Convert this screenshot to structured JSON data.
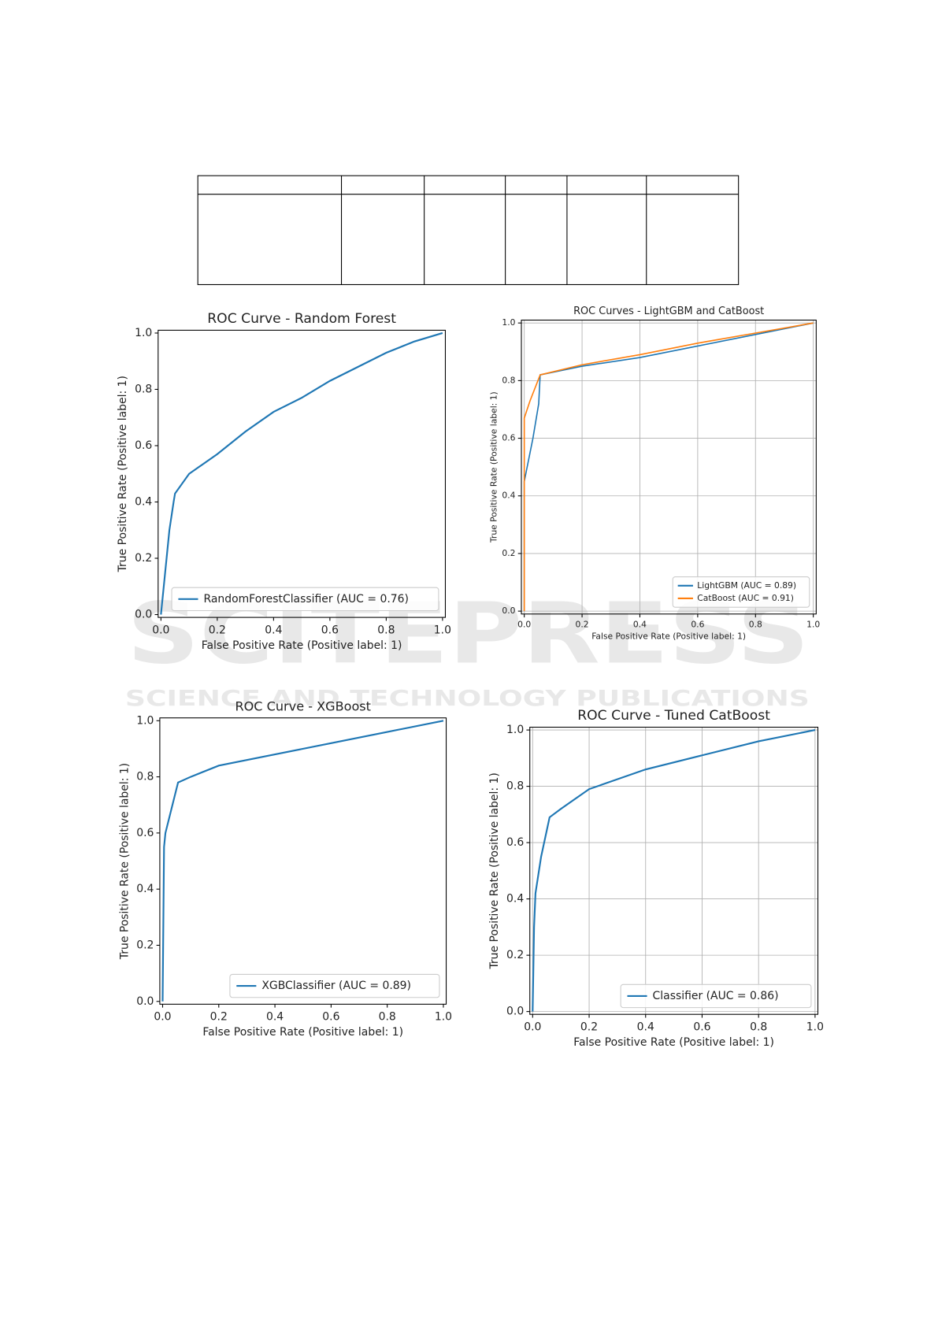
{
  "watermark": {
    "brand": "SCITEPRESS",
    "tagline": "SCIENCE AND TECHNOLOGY PUBLICATIONS"
  },
  "chart_data": [
    {
      "type": "line",
      "title": "ROC Curve - Random Forest",
      "xlabel": "False Positive Rate (Positive label: 1)",
      "ylabel": "True Positive Rate (Positive label: 1)",
      "xlim": [
        -0.01,
        1.01
      ],
      "ylim": [
        -0.01,
        1.01
      ],
      "xticks": [
        {
          "value": 0,
          "label": "0.0"
        },
        0.2,
        0.4,
        0.6,
        0.8,
        {
          "value": 1,
          "label": "1.0"
        }
      ],
      "yticks": [
        {
          "value": 0,
          "label": "0.0"
        },
        0.2,
        0.4,
        0.6,
        0.8,
        {
          "value": 1,
          "label": "1.0"
        }
      ],
      "grid": false,
      "legend": "lower right",
      "series": [
        {
          "name": "RandomForestClassifier (AUC = 0.76)",
          "color": "#1f77b4",
          "x": [
            0,
            0.01,
            0.02,
            0.03,
            0.045,
            0.05,
            0.1,
            0.2,
            0.3,
            0.4,
            0.5,
            0.6,
            0.7,
            0.8,
            0.9,
            1
          ],
          "values": [
            0,
            0.1,
            0.2,
            0.3,
            0.4,
            0.43,
            0.5,
            0.57,
            0.65,
            0.72,
            0.77,
            0.83,
            0.88,
            0.93,
            0.97,
            1
          ]
        }
      ]
    },
    {
      "type": "line",
      "title": "ROC Curves - LightGBM and CatBoost",
      "xlabel": "False Positive Rate (Positive label: 1)",
      "ylabel": "True Positive Rate (Positive label: 1)",
      "xlim": [
        -0.01,
        1.01
      ],
      "ylim": [
        -0.01,
        1.01
      ],
      "xticks": [
        {
          "value": 0,
          "label": "0.0"
        },
        0.2,
        0.4,
        0.6,
        0.8,
        {
          "value": 1,
          "label": "1.0"
        }
      ],
      "yticks": [
        {
          "value": 0,
          "label": "0.0"
        },
        0.2,
        0.4,
        0.6,
        0.8,
        {
          "value": 1,
          "label": "1.0"
        }
      ],
      "grid": true,
      "legend": "lower right",
      "series": [
        {
          "name": "LightGBM (AUC = 0.89)",
          "color": "#1f77b4",
          "x": [
            0,
            0,
            0.01,
            0.03,
            0.05,
            0.055,
            0.2,
            0.4,
            0.6,
            0.8,
            1
          ],
          "values": [
            0,
            0.45,
            0.5,
            0.6,
            0.72,
            0.82,
            0.85,
            0.88,
            0.92,
            0.96,
            1
          ]
        },
        {
          "name": "CatBoost (AUC = 0.91)",
          "color": "#ff7f0e",
          "x": [
            0,
            0,
            0.02,
            0.055,
            0.2,
            0.4,
            0.6,
            0.8,
            1
          ],
          "values": [
            0,
            0.67,
            0.73,
            0.82,
            0.855,
            0.89,
            0.93,
            0.965,
            1
          ]
        }
      ]
    },
    {
      "type": "line",
      "title": "ROC Curve - XGBoost",
      "xlabel": "False Positive Rate (Positive label: 1)",
      "ylabel": "True Positive Rate (Positive label: 1)",
      "xlim": [
        -0.01,
        1.01
      ],
      "ylim": [
        -0.01,
        1.01
      ],
      "xticks": [
        {
          "value": 0,
          "label": "0.0"
        },
        0.2,
        0.4,
        0.6,
        0.8,
        {
          "value": 1,
          "label": "1.0"
        }
      ],
      "yticks": [
        {
          "value": 0,
          "label": "0.0"
        },
        0.2,
        0.4,
        0.6,
        0.8,
        {
          "value": 1,
          "label": "1.0"
        }
      ],
      "grid": false,
      "legend": "lower right",
      "series": [
        {
          "name": "XGBClassifier (AUC = 0.89)",
          "color": "#1f77b4",
          "x": [
            0,
            0.005,
            0.01,
            0.03,
            0.055,
            0.1,
            0.2,
            0.4,
            0.6,
            0.8,
            1
          ],
          "values": [
            0,
            0.55,
            0.6,
            0.68,
            0.78,
            0.8,
            0.84,
            0.88,
            0.92,
            0.96,
            1
          ]
        }
      ]
    },
    {
      "type": "line",
      "title": "ROC Curve - Tuned CatBoost",
      "xlabel": "False Positive Rate (Positive label: 1)",
      "ylabel": "True Positive Rate (Positive label: 1)",
      "xlim": [
        -0.01,
        1.01
      ],
      "ylim": [
        -0.01,
        1.01
      ],
      "xticks": [
        {
          "value": 0,
          "label": "0.0"
        },
        0.2,
        0.4,
        0.6,
        0.8,
        {
          "value": 1,
          "label": "1.0"
        }
      ],
      "yticks": [
        {
          "value": 0,
          "label": "0.0"
        },
        0.2,
        0.4,
        0.6,
        0.8,
        {
          "value": 1,
          "label": "1.0"
        }
      ],
      "grid": true,
      "legend": "lower right",
      "series": [
        {
          "name": "Classifier (AUC = 0.86)",
          "color": "#1f77b4",
          "x": [
            0,
            0.005,
            0.01,
            0.03,
            0.06,
            0.1,
            0.2,
            0.4,
            0.6,
            0.8,
            1
          ],
          "values": [
            0,
            0.3,
            0.42,
            0.55,
            0.69,
            0.72,
            0.79,
            0.86,
            0.91,
            0.96,
            1
          ]
        }
      ]
    }
  ]
}
